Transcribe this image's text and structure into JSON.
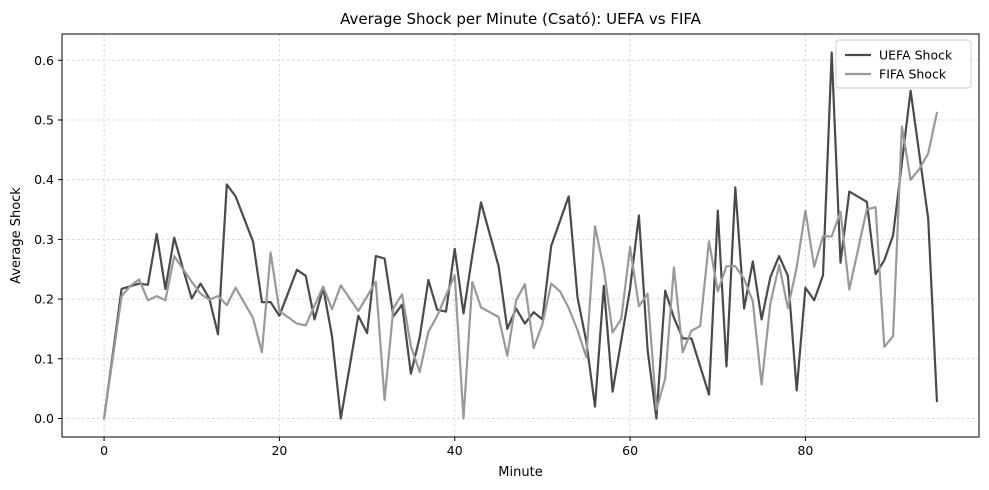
{
  "chart_data": {
    "type": "line",
    "title": "Average Shock per Minute (Csató): UEFA vs FIFA",
    "xlabel": "Minute",
    "ylabel": "Average Shock",
    "xlim": [
      -4.8,
      99.8
    ],
    "ylim": [
      -0.031,
      0.644
    ],
    "xticks": [
      0,
      20,
      40,
      60,
      80
    ],
    "yticks": [
      0.0,
      0.1,
      0.2,
      0.3,
      0.4,
      0.5,
      0.6
    ],
    "ytick_labels": [
      "0.0",
      "0.1",
      "0.2",
      "0.3",
      "0.4",
      "0.5",
      "0.6"
    ],
    "grid": true,
    "legend_position": "top-right",
    "series": [
      {
        "name": "UEFA Shock",
        "color": "#4a4a4a",
        "points": [
          [
            0,
            0.0
          ],
          [
            2,
            0.217
          ],
          [
            4,
            0.226
          ],
          [
            5,
            0.224
          ],
          [
            6,
            0.309
          ],
          [
            7,
            0.217
          ],
          [
            8,
            0.303
          ],
          [
            9,
            0.251
          ],
          [
            10,
            0.201
          ],
          [
            11,
            0.226
          ],
          [
            12,
            0.201
          ],
          [
            13,
            0.141
          ],
          [
            14,
            0.392
          ],
          [
            15,
            0.372
          ],
          [
            17,
            0.296
          ],
          [
            18,
            0.195
          ],
          [
            19,
            0.195
          ],
          [
            20,
            0.172
          ],
          [
            22,
            0.249
          ],
          [
            23,
            0.239
          ],
          [
            24,
            0.166
          ],
          [
            25,
            0.219
          ],
          [
            26,
            0.138
          ],
          [
            27,
            0.0
          ],
          [
            29,
            0.172
          ],
          [
            30,
            0.143
          ],
          [
            31,
            0.272
          ],
          [
            32,
            0.268
          ],
          [
            33,
            0.171
          ],
          [
            34,
            0.191
          ],
          [
            35,
            0.075
          ],
          [
            36,
            0.136
          ],
          [
            37,
            0.232
          ],
          [
            38,
            0.182
          ],
          [
            39,
            0.179
          ],
          [
            40,
            0.284
          ],
          [
            41,
            0.176
          ],
          [
            42,
            0.273
          ],
          [
            43,
            0.362
          ],
          [
            45,
            0.255
          ],
          [
            46,
            0.15
          ],
          [
            47,
            0.184
          ],
          [
            48,
            0.159
          ],
          [
            49,
            0.178
          ],
          [
            50,
            0.166
          ],
          [
            51,
            0.289
          ],
          [
            53,
            0.372
          ],
          [
            54,
            0.203
          ],
          [
            55,
            0.129
          ],
          [
            56,
            0.02
          ],
          [
            57,
            0.222
          ],
          [
            58,
            0.045
          ],
          [
            60,
            0.218
          ],
          [
            61,
            0.34
          ],
          [
            62,
            0.115
          ],
          [
            63,
            0.0
          ],
          [
            64,
            0.214
          ],
          [
            65,
            0.169
          ],
          [
            66,
            0.134
          ],
          [
            67,
            0.134
          ],
          [
            69,
            0.04
          ],
          [
            70,
            0.348
          ],
          [
            71,
            0.087
          ],
          [
            72,
            0.387
          ],
          [
            73,
            0.184
          ],
          [
            74,
            0.263
          ],
          [
            75,
            0.166
          ],
          [
            76,
            0.237
          ],
          [
            77,
            0.272
          ],
          [
            78,
            0.239
          ],
          [
            79,
            0.047
          ],
          [
            80,
            0.219
          ],
          [
            81,
            0.198
          ],
          [
            82,
            0.24
          ],
          [
            83,
            0.613
          ],
          [
            84,
            0.261
          ],
          [
            85,
            0.38
          ],
          [
            87,
            0.363
          ],
          [
            88,
            0.242
          ],
          [
            89,
            0.265
          ],
          [
            90,
            0.307
          ],
          [
            92,
            0.549
          ],
          [
            94,
            0.335
          ],
          [
            95,
            0.029
          ]
        ]
      },
      {
        "name": "FIFA Shock",
        "color": "#999999",
        "points": [
          [
            0,
            0.0
          ],
          [
            2,
            0.205
          ],
          [
            3,
            0.222
          ],
          [
            4,
            0.233
          ],
          [
            5,
            0.198
          ],
          [
            6,
            0.205
          ],
          [
            7,
            0.198
          ],
          [
            8,
            0.272
          ],
          [
            10,
            0.229
          ],
          [
            11,
            0.209
          ],
          [
            12,
            0.199
          ],
          [
            13,
            0.205
          ],
          [
            14,
            0.19
          ],
          [
            15,
            0.219
          ],
          [
            17,
            0.168
          ],
          [
            18,
            0.111
          ],
          [
            19,
            0.278
          ],
          [
            20,
            0.18
          ],
          [
            22,
            0.159
          ],
          [
            23,
            0.156
          ],
          [
            24,
            0.189
          ],
          [
            25,
            0.221
          ],
          [
            26,
            0.183
          ],
          [
            27,
            0.223
          ],
          [
            29,
            0.18
          ],
          [
            31,
            0.229
          ],
          [
            32,
            0.031
          ],
          [
            33,
            0.185
          ],
          [
            34,
            0.208
          ],
          [
            35,
            0.121
          ],
          [
            36,
            0.078
          ],
          [
            37,
            0.145
          ],
          [
            38,
            0.172
          ],
          [
            40,
            0.24
          ],
          [
            41,
            0.0
          ],
          [
            42,
            0.229
          ],
          [
            43,
            0.186
          ],
          [
            45,
            0.17
          ],
          [
            46,
            0.105
          ],
          [
            47,
            0.198
          ],
          [
            48,
            0.225
          ],
          [
            49,
            0.118
          ],
          [
            50,
            0.158
          ],
          [
            51,
            0.226
          ],
          [
            52,
            0.213
          ],
          [
            53,
            0.185
          ],
          [
            54,
            0.148
          ],
          [
            55,
            0.103
          ],
          [
            56,
            0.322
          ],
          [
            57,
            0.251
          ],
          [
            58,
            0.144
          ],
          [
            59,
            0.167
          ],
          [
            60,
            0.287
          ],
          [
            61,
            0.188
          ],
          [
            62,
            0.209
          ],
          [
            63,
            0.015
          ],
          [
            64,
            0.067
          ],
          [
            65,
            0.253
          ],
          [
            66,
            0.111
          ],
          [
            67,
            0.147
          ],
          [
            68,
            0.155
          ],
          [
            69,
            0.297
          ],
          [
            70,
            0.213
          ],
          [
            71,
            0.255
          ],
          [
            72,
            0.255
          ],
          [
            73,
            0.234
          ],
          [
            74,
            0.196
          ],
          [
            75,
            0.057
          ],
          [
            76,
            0.193
          ],
          [
            77,
            0.257
          ],
          [
            78,
            0.185
          ],
          [
            79,
            0.253
          ],
          [
            80,
            0.348
          ],
          [
            81,
            0.254
          ],
          [
            82,
            0.305
          ],
          [
            83,
            0.305
          ],
          [
            84,
            0.346
          ],
          [
            85,
            0.216
          ],
          [
            87,
            0.35
          ],
          [
            88,
            0.354
          ],
          [
            89,
            0.12
          ],
          [
            90,
            0.138
          ],
          [
            91,
            0.489
          ],
          [
            92,
            0.4
          ],
          [
            93,
            0.418
          ],
          [
            94,
            0.444
          ],
          [
            95,
            0.512
          ]
        ]
      }
    ]
  }
}
